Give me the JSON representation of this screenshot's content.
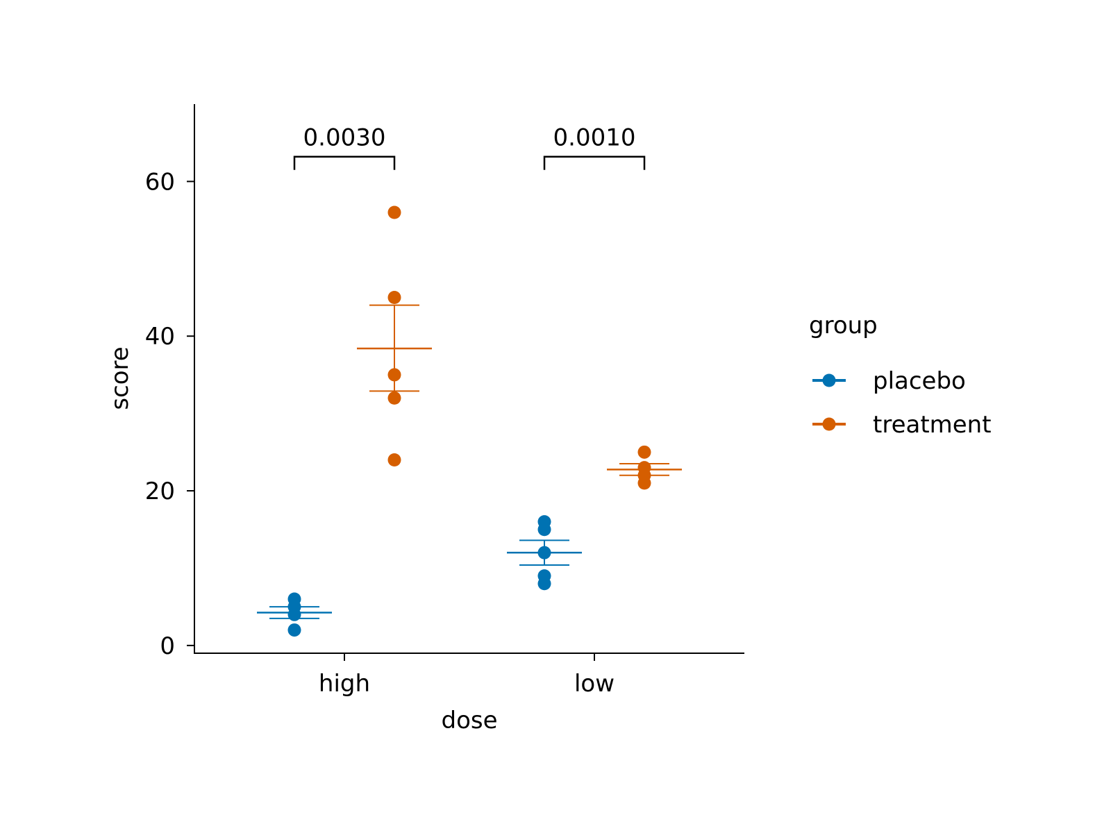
{
  "chart_data": {
    "type": "scatter",
    "xlabel": "dose",
    "ylabel": "score",
    "categories": [
      "high",
      "low"
    ],
    "ylim": [
      -1,
      70
    ],
    "yticks": [
      0,
      20,
      40,
      60
    ],
    "grid": false,
    "legend": {
      "title": "group",
      "position": "right"
    },
    "series": [
      {
        "name": "placebo",
        "color": "#0072B2",
        "points": {
          "high": [
            2,
            4,
            5,
            6
          ],
          "low": [
            8,
            9,
            12,
            15,
            16
          ]
        },
        "summary": {
          "high": {
            "mean": 4.25,
            "lower": 3.5,
            "upper": 5.0
          },
          "low": {
            "mean": 12.0,
            "lower": 10.4,
            "upper": 13.6
          }
        }
      },
      {
        "name": "treatment",
        "color": "#D55E00",
        "points": {
          "high": [
            24,
            32,
            35,
            45,
            56
          ],
          "low": [
            21,
            22,
            23,
            25
          ]
        },
        "summary": {
          "high": {
            "mean": 38.4,
            "lower": 32.9,
            "upper": 44.0
          },
          "low": {
            "mean": 22.75,
            "lower": 22.0,
            "upper": 23.5
          }
        }
      }
    ],
    "annotations": [
      {
        "category": "high",
        "label": "0.0030",
        "y": 61.5
      },
      {
        "category": "low",
        "label": "0.0010",
        "y": 61.5
      }
    ]
  }
}
